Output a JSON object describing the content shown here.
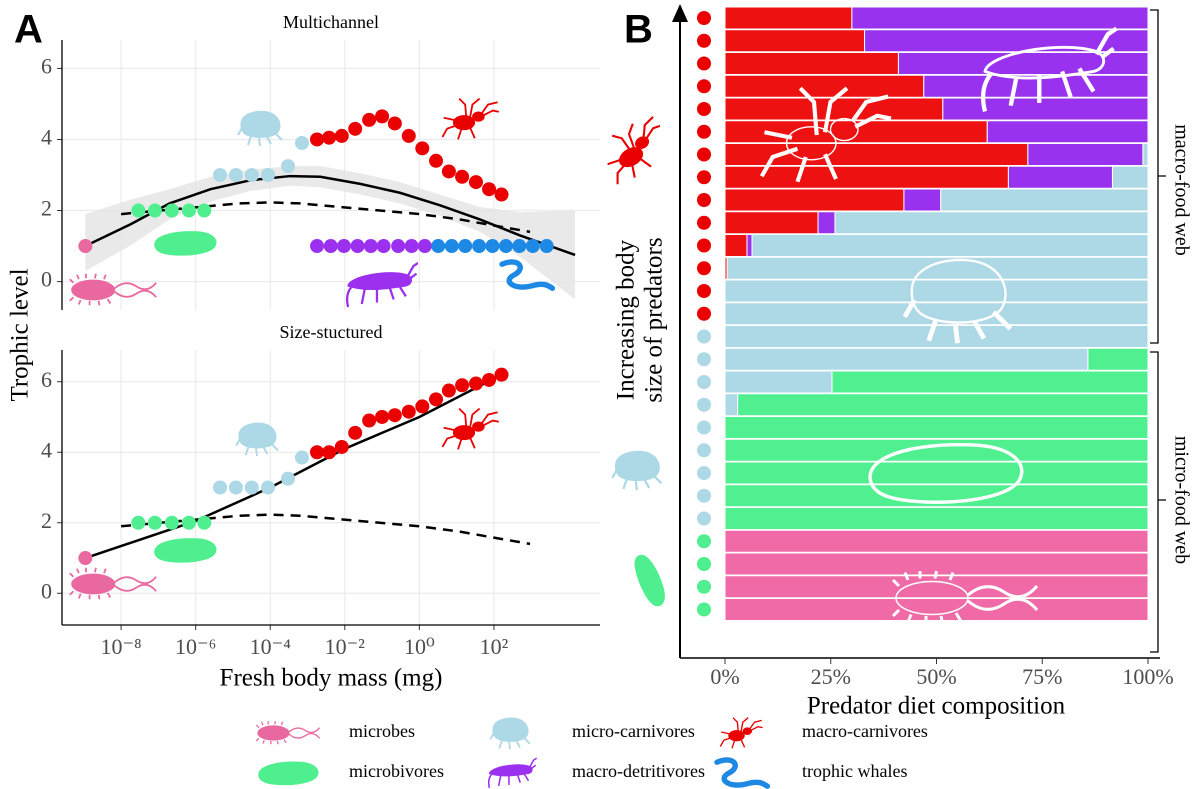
{
  "chart_data": [
    {
      "type": "scatter",
      "panel": "A",
      "title": "Multichannel",
      "ylabel": "Trophic level",
      "log_x": true,
      "xlim": [
        2.6e-10,
        70000
      ],
      "ylim": [
        -0.8,
        6.8
      ],
      "yticks": [
        0,
        2,
        4,
        6
      ],
      "grid": true,
      "series": [
        {
          "name": "microbes",
          "color": "#e8689f",
          "x": [
            1.1e-09
          ],
          "values": [
            1
          ]
        },
        {
          "name": "microbivores",
          "color": "#4fee8e",
          "x": [
            2.9e-08,
            8.1e-08,
            2.3e-07,
            6.6e-07,
            1.7e-06
          ],
          "values": [
            2,
            2,
            2,
            2,
            2
          ]
        },
        {
          "name": "micro-carnivores",
          "color": "#add8e6",
          "x": [
            4.5e-06,
            1.2e-05,
            3.2e-05,
            8.7e-05,
            0.0003,
            0.00071,
            0.0018
          ],
          "values": [
            3,
            3,
            3,
            3,
            3.25,
            3.9,
            4
          ]
        },
        {
          "name": "macro-detritivores",
          "color": "#9b30ef",
          "x": [
            0.0018,
            0.0042,
            0.0095,
            0.022,
            0.05,
            0.11,
            0.27,
            0.62,
            1.4
          ],
          "values": [
            1,
            1,
            1,
            1,
            1,
            1,
            1,
            1,
            1
          ]
        },
        {
          "name": "macro-carnivores",
          "color": "#ea0000",
          "x": [
            0.0018,
            0.0038,
            0.0083,
            0.019,
            0.045,
            0.1,
            0.22,
            0.52,
            1.2,
            2.8,
            6.2,
            14,
            33,
            74,
            160
          ],
          "values": [
            4,
            4.05,
            4.1,
            4.3,
            4.55,
            4.65,
            4.45,
            4.1,
            3.75,
            3.4,
            3.1,
            2.95,
            2.8,
            2.6,
            2.45
          ]
        },
        {
          "name": "trophic whales",
          "color": "#1e88e5",
          "x": [
            3.2,
            7.4,
            17,
            40,
            91,
            210,
            480,
            1100,
            2600
          ],
          "values": [
            1,
            1,
            1,
            1,
            1,
            1,
            1,
            1,
            1
          ]
        }
      ],
      "band": {
        "color": "#e3e3e3",
        "x": [
          1.1e-09,
          1.7e-08,
          2e-07,
          2.5e-06,
          2.9e-05,
          0.00034,
          0.0022,
          0.026,
          0.3,
          3.5,
          42,
          500,
          15000
        ],
        "lower": [
          0.3,
          1.0,
          1.75,
          2.25,
          2.55,
          2.7,
          2.65,
          2.45,
          2.2,
          1.85,
          1.4,
          0.7,
          -0.5
        ],
        "upper": [
          1.9,
          2.3,
          2.6,
          2.95,
          3.15,
          3.25,
          3.25,
          3.05,
          2.8,
          2.45,
          2.1,
          1.95,
          2.0
        ]
      },
      "lines": [
        {
          "style": "solid",
          "color": "#000000",
          "x": [
            1.1e-09,
            1.7e-08,
            2e-07,
            2.5e-06,
            2.9e-05,
            0.00034,
            0.0022,
            0.026,
            0.3,
            3.5,
            42,
            500,
            15000
          ],
          "values": [
            1,
            1.6,
            2.2,
            2.6,
            2.85,
            2.97,
            2.95,
            2.75,
            2.5,
            2.15,
            1.75,
            1.3,
            0.75
          ]
        },
        {
          "style": "dashed",
          "color": "#000000",
          "x": [
            1e-08,
            1.1e-07,
            1.3e-06,
            1.5e-05,
            0.0001,
            0.00063,
            0.0074,
            0.087,
            1,
            12,
            140,
            930
          ],
          "values": [
            1.9,
            2.0,
            2.1,
            2.2,
            2.23,
            2.2,
            2.1,
            2.0,
            1.9,
            1.75,
            1.55,
            1.4
          ]
        }
      ]
    },
    {
      "type": "scatter",
      "title": "Size-stuctured",
      "xlabel": "Fresh body mass (mg)",
      "log_x": true,
      "xlim": [
        2.6e-10,
        70000
      ],
      "ylim": [
        -0.9,
        6.9
      ],
      "yticks": [
        0,
        2,
        4,
        6
      ],
      "grid": true,
      "xticks": [
        {
          "value": 1e-08,
          "label": "10⁻⁸"
        },
        {
          "value": 1e-06,
          "label": "10⁻⁶"
        },
        {
          "value": 0.0001,
          "label": "10⁻⁴"
        },
        {
          "value": 0.01,
          "label": "10⁻²"
        },
        {
          "value": 1,
          "label": "10⁰"
        },
        {
          "value": 100,
          "label": "10²"
        }
      ],
      "series": [
        {
          "color": "#e8689f",
          "x": [
            1.1e-09
          ],
          "values": [
            1
          ]
        },
        {
          "color": "#4fee8e",
          "x": [
            2.9e-08,
            8.1e-08,
            2.3e-07,
            6.6e-07,
            1.7e-06
          ],
          "values": [
            2,
            2,
            2,
            2,
            2
          ]
        },
        {
          "color": "#add8e6",
          "x": [
            4.5e-06,
            1.2e-05,
            3.2e-05,
            8.7e-05,
            0.0003,
            0.00071,
            0.0018
          ],
          "values": [
            3,
            3,
            3,
            3,
            3.25,
            3.85,
            4
          ]
        },
        {
          "color": "#ea0000",
          "x": [
            0.0018,
            0.0038,
            0.0083,
            0.019,
            0.045,
            0.1,
            0.22,
            0.52,
            1.2,
            2.8,
            6.2,
            14,
            33,
            74,
            160
          ],
          "values": [
            4,
            4,
            4.15,
            4.55,
            4.9,
            5.0,
            5.05,
            5.15,
            5.3,
            5.5,
            5.75,
            5.9,
            5.95,
            6.05,
            6.2
          ]
        }
      ],
      "lines": [
        {
          "style": "solid",
          "color": "#000000",
          "x": [
            1.1e-09,
            1e-06,
            0.0001,
            0.01,
            1,
            160
          ],
          "values": [
            1,
            2.05,
            3.0,
            4.1,
            5.0,
            6.2
          ]
        },
        {
          "style": "dashed",
          "color": "#000000",
          "x": [
            1e-08,
            1.1e-07,
            1.3e-06,
            1.5e-05,
            0.0001,
            0.00063,
            0.0074,
            0.087,
            1,
            12,
            140,
            930
          ],
          "values": [
            1.9,
            2.0,
            2.1,
            2.2,
            2.23,
            2.2,
            2.1,
            2.0,
            1.9,
            1.75,
            1.55,
            1.4
          ]
        }
      ]
    },
    {
      "type": "bar",
      "panel": "B",
      "orientation": "horizontal",
      "stacked": true,
      "xlabel": "Predator diet composition",
      "ylabel": [
        "Increasing body",
        "size of predators"
      ],
      "groups": [
        "macro-food web",
        "micro-food web"
      ],
      "xlim": [
        0,
        100
      ],
      "xticks": [
        {
          "value": 0,
          "label": "0%"
        },
        {
          "value": 25,
          "label": "25%"
        },
        {
          "value": 50,
          "label": "50%"
        },
        {
          "value": 75,
          "label": "75%"
        },
        {
          "value": 100,
          "label": "100%"
        }
      ],
      "predator_colors": [
        "#ea0000",
        "#ea0000",
        "#ea0000",
        "#ea0000",
        "#ea0000",
        "#ea0000",
        "#ea0000",
        "#ea0000",
        "#ea0000",
        "#ea0000",
        "#ea0000",
        "#ea0000",
        "#ea0000",
        "#ea0000",
        "#add8e6",
        "#add8e6",
        "#add8e6",
        "#add8e6",
        "#add8e6",
        "#add8e6",
        "#add8e6",
        "#add8e6",
        "#add8e6",
        "#4fee8e",
        "#4fee8e",
        "#4fee8e",
        "#4fee8e"
      ],
      "series": [
        {
          "color": "#ee1111",
          "values": [
            30,
            33,
            41,
            47,
            51.5,
            62,
            71.6,
            67,
            42.3,
            22,
            5.2,
            0.5,
            0,
            0,
            0,
            0,
            0,
            0,
            0,
            0,
            0,
            0,
            0,
            0,
            0,
            0,
            0
          ]
        },
        {
          "color": "#9932ee",
          "values": [
            70,
            67,
            59,
            53,
            48.5,
            38,
            27.2,
            24.6,
            8.7,
            4,
            1.2,
            0,
            0,
            0,
            0,
            0,
            0,
            0,
            0,
            0,
            0,
            0,
            0,
            0,
            0,
            0,
            0
          ]
        },
        {
          "color": "#add8e6",
          "values": [
            0,
            0,
            0,
            0,
            0,
            0,
            1.2,
            8.4,
            49,
            74,
            93.6,
            99.5,
            100,
            100,
            100,
            85.8,
            25.3,
            3,
            0,
            0,
            0,
            0,
            0,
            0,
            0,
            0,
            0
          ]
        },
        {
          "color": "#50ef90",
          "values": [
            0,
            0,
            0,
            0,
            0,
            0,
            0,
            0,
            0,
            0,
            0,
            0,
            0,
            0,
            0,
            14.2,
            74.7,
            97,
            100,
            100,
            100,
            100,
            100,
            0,
            0,
            0,
            0
          ]
        },
        {
          "color": "#ef6aa6",
          "values": [
            0,
            0,
            0,
            0,
            0,
            0,
            0,
            0,
            0,
            0,
            0,
            0,
            0,
            0,
            0,
            0,
            0,
            0,
            0,
            0,
            0,
            0,
            0,
            100,
            100,
            100,
            100
          ]
        }
      ]
    }
  ]
}
